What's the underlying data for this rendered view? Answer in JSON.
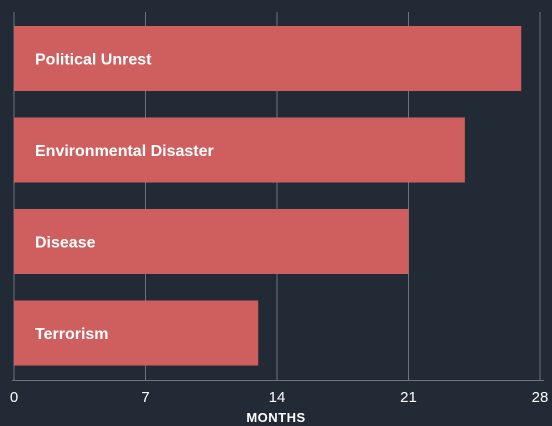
{
  "chart_data": {
    "type": "bar",
    "orientation": "horizontal",
    "categories": [
      "Political Unrest",
      "Environmental Disaster",
      "Disease",
      "Terrorism"
    ],
    "values": [
      27,
      24,
      21,
      13
    ],
    "xlabel": "MONTHS",
    "ylabel": "",
    "title": "",
    "xlim": [
      0,
      28
    ],
    "x_ticks": [
      0,
      7,
      14,
      21,
      28
    ],
    "grid": "vertical",
    "colors": {
      "background": "#222b35",
      "bar": "#cf5f5f",
      "grid": "#6b7480",
      "text": "#ffffff"
    }
  }
}
